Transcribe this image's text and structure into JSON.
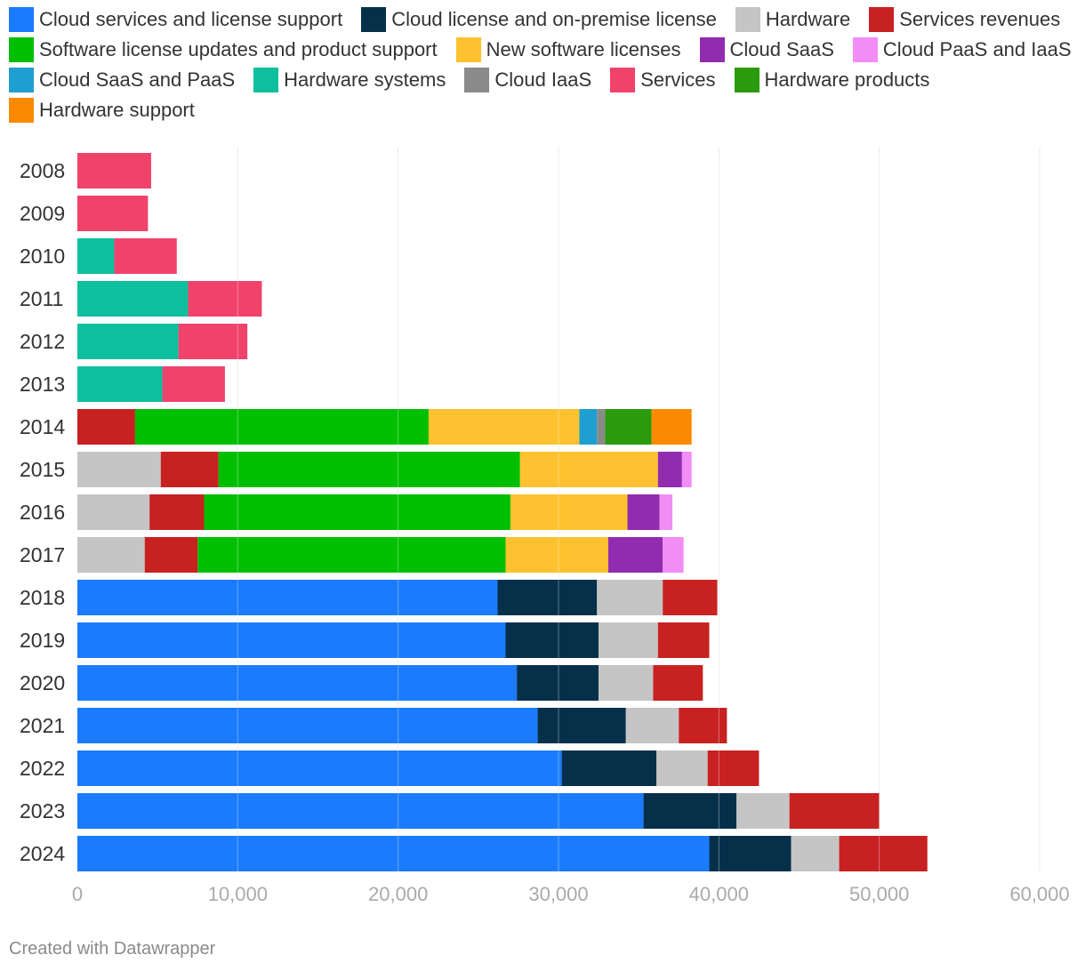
{
  "chart_data": {
    "type": "bar",
    "orientation": "horizontal",
    "stacked": true,
    "categories": [
      "2008",
      "2009",
      "2010",
      "2011",
      "2012",
      "2013",
      "2014",
      "2015",
      "2016",
      "2017",
      "2018",
      "2019",
      "2020",
      "2021",
      "2022",
      "2023",
      "2024"
    ],
    "xlim": [
      0,
      60000
    ],
    "xticks": [
      0,
      10000,
      20000,
      30000,
      40000,
      50000,
      60000
    ],
    "xtick_labels": [
      "0",
      "10,000",
      "20,000",
      "30,000",
      "40,000",
      "50,000",
      "60,000"
    ],
    "grid": true,
    "legend_position": "top",
    "series": [
      {
        "name": "Cloud services and license support",
        "color": "#1a7bff",
        "values": [
          0,
          0,
          0,
          0,
          0,
          0,
          0,
          0,
          0,
          0,
          26200,
          26700,
          27400,
          28700,
          30200,
          35300,
          39400
        ]
      },
      {
        "name": "Cloud license and on-premise license",
        "color": "#06304a",
        "values": [
          0,
          0,
          0,
          0,
          0,
          0,
          0,
          0,
          0,
          0,
          6200,
          5800,
          5100,
          5500,
          5900,
          5800,
          5100
        ]
      },
      {
        "name": "Hardware",
        "color": "#c5c5c5",
        "values": [
          0,
          0,
          0,
          0,
          0,
          0,
          0,
          5200,
          4500,
          4200,
          4100,
          3700,
          3400,
          3300,
          3200,
          3300,
          3000
        ]
      },
      {
        "name": "Services revenues",
        "color": "#c82121",
        "values": [
          0,
          0,
          0,
          0,
          0,
          0,
          3600,
          3600,
          3400,
          3300,
          3400,
          3200,
          3100,
          3000,
          3200,
          5600,
          5500
        ]
      },
      {
        "name": "Software license updates and product support",
        "color": "#00bf00",
        "values": [
          0,
          0,
          0,
          0,
          0,
          0,
          18300,
          18800,
          19100,
          19200,
          0,
          0,
          0,
          0,
          0,
          0,
          0
        ]
      },
      {
        "name": "New software licenses",
        "color": "#fec12f",
        "values": [
          0,
          0,
          0,
          0,
          0,
          0,
          9400,
          8600,
          7300,
          6400,
          0,
          0,
          0,
          0,
          0,
          0,
          0
        ]
      },
      {
        "name": "Cloud SaaS",
        "color": "#912cb0",
        "values": [
          0,
          0,
          0,
          0,
          0,
          0,
          0,
          1500,
          2000,
          3400,
          0,
          0,
          0,
          0,
          0,
          0,
          0
        ]
      },
      {
        "name": "Cloud PaaS and IaaS",
        "color": "#f18df5",
        "values": [
          0,
          0,
          0,
          0,
          0,
          0,
          0,
          600,
          800,
          1300,
          0,
          0,
          0,
          0,
          0,
          0,
          0
        ]
      },
      {
        "name": "Cloud SaaS and PaaS",
        "color": "#1f9fd1",
        "values": [
          0,
          0,
          0,
          0,
          0,
          0,
          1100,
          0,
          0,
          0,
          0,
          0,
          0,
          0,
          0,
          0,
          0
        ]
      },
      {
        "name": "Hardware systems",
        "color": "#0dbf9e",
        "values": [
          0,
          0,
          2300,
          6900,
          6300,
          5300,
          0,
          0,
          0,
          0,
          0,
          0,
          0,
          0,
          0,
          0,
          0
        ]
      },
      {
        "name": "Cloud IaaS",
        "color": "#8a8a8a",
        "values": [
          0,
          0,
          0,
          0,
          0,
          0,
          500,
          0,
          0,
          0,
          0,
          0,
          0,
          0,
          0,
          0,
          0
        ]
      },
      {
        "name": "Services",
        "color": "#f1426c",
        "values": [
          4600,
          4400,
          3900,
          4600,
          4300,
          3900,
          0,
          0,
          0,
          0,
          0,
          0,
          0,
          0,
          0,
          0,
          0
        ]
      },
      {
        "name": "Hardware products",
        "color": "#2c9a0d",
        "values": [
          0,
          0,
          0,
          0,
          0,
          0,
          2900,
          0,
          0,
          0,
          0,
          0,
          0,
          0,
          0,
          0,
          0
        ]
      },
      {
        "name": "Hardware support",
        "color": "#fb8a00",
        "values": [
          0,
          0,
          0,
          0,
          0,
          0,
          2500,
          0,
          0,
          0,
          0,
          0,
          0,
          0,
          0,
          0,
          0
        ]
      }
    ]
  },
  "footer": {
    "credit": "Created with Datawrapper"
  }
}
